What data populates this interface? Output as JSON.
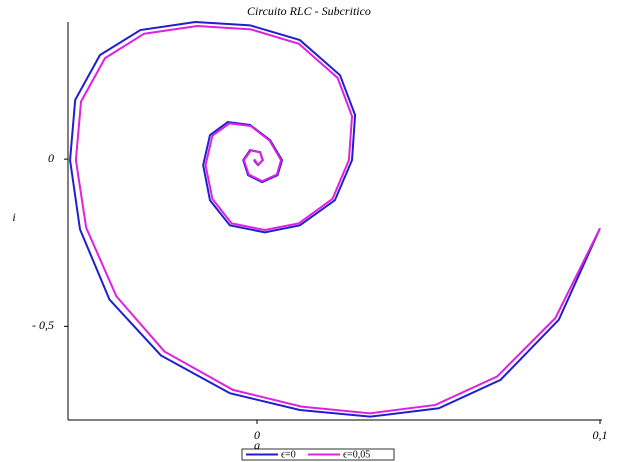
{
  "chart_data": {
    "type": "line",
    "title": "Circuito RLC - Subcritico",
    "x_label": "q",
    "y_label": "i",
    "xlim": [
      -0.0551,
      0.1
    ],
    "ylim": [
      -0.78,
      0.41
    ],
    "xticks": [
      0,
      {
        "value": 0.1,
        "label": "0,1"
      }
    ],
    "yticks": [
      0,
      {
        "value": -0.5,
        "label": "- 0,5"
      }
    ],
    "legend": "bottom",
    "series": [
      {
        "name": "ϵ=0",
        "color": "#1f1fd0",
        "x": [
          0.1,
          0.088,
          0.071,
          0.053,
          0.033,
          0.0125,
          -0.0079,
          -0.028,
          -0.043,
          -0.0516,
          -0.0545,
          -0.053,
          -0.0458,
          -0.034,
          -0.018,
          -0.002,
          0.0125,
          0.0242,
          0.0286,
          0.0277,
          0.0227,
          0.0125,
          0.0023,
          -0.0079,
          -0.0137,
          -0.0157,
          -0.0137,
          -0.0085,
          -0.002,
          0.0038,
          0.0073,
          0.006,
          0.0015,
          -0.0026,
          -0.004,
          -0.002,
          0.0009,
          0.0017,
          0.0003,
          -0.0009
        ],
        "values": [
          -0.207,
          -0.48,
          -0.66,
          -0.745,
          -0.77,
          -0.75,
          -0.7,
          -0.587,
          -0.42,
          -0.21,
          -0.003,
          0.177,
          0.311,
          0.386,
          0.41,
          0.4,
          0.356,
          0.251,
          0.132,
          -0.003,
          -0.123,
          -0.198,
          -0.219,
          -0.198,
          -0.123,
          -0.018,
          0.072,
          0.111,
          0.102,
          0.057,
          -0.003,
          -0.048,
          -0.069,
          -0.048,
          -0.003,
          0.027,
          0.021,
          -0.003,
          -0.018,
          -0.003
        ]
      },
      {
        "name": "ϵ=0,05",
        "color": "#e020e0",
        "x": [
          0.1,
          0.087,
          0.07,
          0.052,
          0.033,
          0.013,
          -0.007,
          -0.027,
          -0.041,
          -0.0498,
          -0.0528,
          -0.0513,
          -0.0443,
          -0.0329,
          -0.0174,
          -0.0018,
          0.0122,
          0.0235,
          0.0277,
          0.0268,
          0.022,
          0.0122,
          0.0023,
          -0.0074,
          -0.013,
          -0.015,
          -0.013,
          -0.008,
          -0.0018,
          0.0037,
          0.007,
          0.0058,
          0.0015,
          -0.0024,
          -0.0038,
          -0.0018,
          0.0009,
          0.0016,
          0.0003,
          -0.0008
        ],
        "values": [
          -0.207,
          -0.475,
          -0.65,
          -0.735,
          -0.76,
          -0.74,
          -0.69,
          -0.575,
          -0.41,
          -0.205,
          -0.003,
          0.172,
          0.302,
          0.375,
          0.398,
          0.388,
          0.345,
          0.243,
          0.128,
          -0.003,
          -0.119,
          -0.192,
          -0.212,
          -0.192,
          -0.119,
          -0.018,
          0.07,
          0.107,
          0.099,
          0.055,
          -0.003,
          -0.046,
          -0.066,
          -0.046,
          -0.003,
          0.026,
          0.02,
          -0.003,
          -0.017,
          0
        ]
      }
    ]
  }
}
